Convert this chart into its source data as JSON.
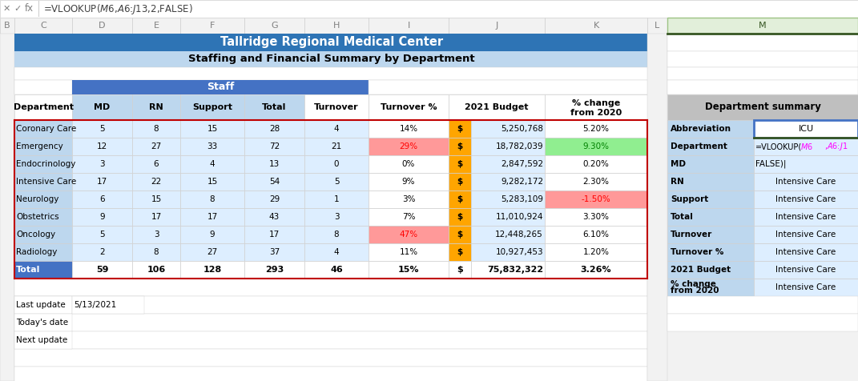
{
  "formula_bar": "=VLOOKUP($M$6,$A$6:$J$13,2,FALSE)",
  "title1": "Tallridge Regional Medical Center",
  "title2": "Staffing and Financial Summary by Department",
  "staff_header": "Staff",
  "dept_names": [
    "Coronary Care",
    "Emergency",
    "Endocrinology",
    "Intensive Care",
    "Neurology",
    "Obstetrics",
    "Oncology",
    "Radiology"
  ],
  "md_vals": [
    5,
    12,
    3,
    17,
    6,
    9,
    5,
    2
  ],
  "rn_vals": [
    8,
    27,
    6,
    22,
    15,
    17,
    3,
    8
  ],
  "sup_vals": [
    15,
    33,
    4,
    15,
    8,
    17,
    9,
    27
  ],
  "tot_vals": [
    28,
    72,
    13,
    54,
    29,
    43,
    17,
    37
  ],
  "turn_vals": [
    4,
    21,
    0,
    5,
    1,
    3,
    8,
    4
  ],
  "turn_pcts": [
    "14%",
    "29%",
    "0%",
    "9%",
    "3%",
    "7%",
    "47%",
    "11%"
  ],
  "turn_pct_bgs": [
    "#FFFFFF",
    "#FF9999",
    "#FFFFFF",
    "#FFFFFF",
    "#FFFFFF",
    "#FFFFFF",
    "#FF9999",
    "#FFFFFF"
  ],
  "turn_pct_colors": [
    "#000000",
    "#FF0000",
    "#000000",
    "#000000",
    "#000000",
    "#000000",
    "#FF0000",
    "#000000"
  ],
  "budgets": [
    "5,250,768",
    "18,782,039",
    "2,847,592",
    "9,282,172",
    "5,283,109",
    "11,010,924",
    "12,448,265",
    "10,927,453"
  ],
  "chg_values": [
    "5.20%",
    "9.30%",
    "0.20%",
    "2.30%",
    "-1.50%",
    "3.30%",
    "6.10%",
    "1.20%"
  ],
  "chg_bgs": [
    "#FFFFFF",
    "#90EE90",
    "#FFFFFF",
    "#FFFFFF",
    "#FF9999",
    "#FFFFFF",
    "#FFFFFF",
    "#FFFFFF"
  ],
  "chg_colors": [
    "#000000",
    "#008000",
    "#000000",
    "#000000",
    "#FF0000",
    "#000000",
    "#000000",
    "#000000"
  ],
  "dept_bgs": [
    "#D6DCE4",
    "#D6DCE4",
    "#D6DCE4",
    "#D6DCE4",
    "#D6DCE4",
    "#D6DCE4",
    "#D6DCE4",
    "#D6DCE4"
  ],
  "row_bgs": [
    "#DDEEFF",
    "#DDEEFF",
    "#DDEEFF",
    "#DDEEFF",
    "#DDEEFF",
    "#DDEEFF",
    "#DDEEFF",
    "#DDEEFF"
  ],
  "total_md": 59,
  "total_rn": 106,
  "total_sup": 128,
  "total_tot": 293,
  "total_turn": 46,
  "total_turnpct": "15%",
  "total_budget": "75,832,322",
  "total_chg": "3.26%",
  "dept_summary_title": "Department summary",
  "last_update_val": "5/13/2021",
  "col_labels": [
    "B",
    "C",
    "D",
    "E",
    "F",
    "G",
    "H",
    "I",
    "J",
    "K",
    "L",
    "M"
  ],
  "col_starts": [
    0,
    18,
    90,
    165,
    225,
    305,
    380,
    460,
    560,
    680,
    808,
    833,
    1071
  ],
  "title_bg": "#2E74B5",
  "subtitle_bg": "#BDD7EE",
  "staff_blue": "#4472C4",
  "total_blue": "#4472C4",
  "light_blue": "#BDD7EE",
  "data_bg": "#DDEEFF",
  "dollar_orange": "#FFA500",
  "gray_header": "#BFBFBF"
}
